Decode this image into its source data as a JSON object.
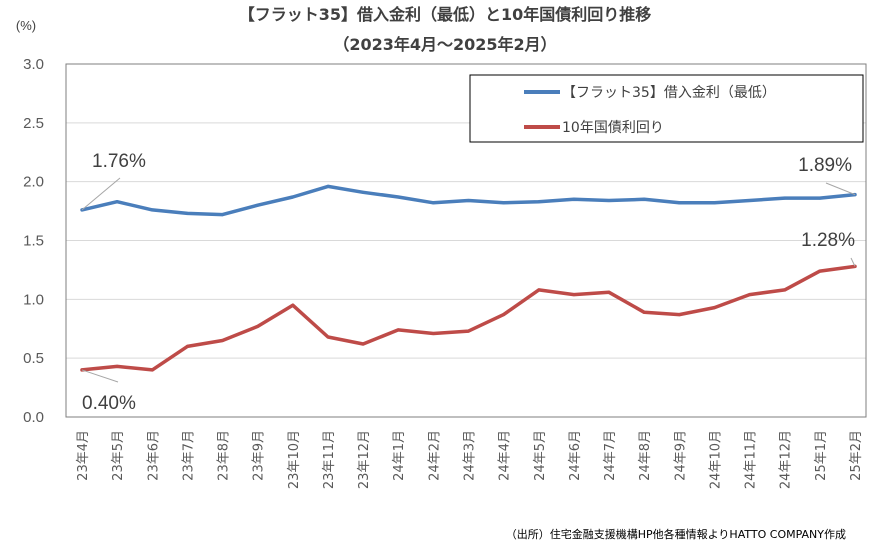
{
  "chart_data": {
    "type": "line",
    "title": "【フラット35】借入金利（最低）と10年国債利回り推移",
    "subtitle": "（2023年4月～2025年2月）",
    "ylabel": "(%)",
    "xlabel": "",
    "ylim": [
      0,
      3.0
    ],
    "yticks": [
      "0.0",
      "0.5",
      "1.0",
      "1.5",
      "2.0",
      "2.5",
      "3.0"
    ],
    "categories": [
      "23年4月",
      "23年5月",
      "23年6月",
      "23年7月",
      "23年8月",
      "23年9月",
      "23年10月",
      "23年11月",
      "23年12月",
      "24年1月",
      "24年2月",
      "24年3月",
      "24年4月",
      "24年5月",
      "24年6月",
      "24年7月",
      "24年8月",
      "24年9月",
      "24年10月",
      "24年11月",
      "24年12月",
      "25年1月",
      "25年2月"
    ],
    "series": [
      {
        "name": "【フラット35】借入金利（最低）",
        "color": "#4A7EBB",
        "values": [
          1.76,
          1.83,
          1.76,
          1.73,
          1.72,
          1.8,
          1.87,
          1.96,
          1.91,
          1.87,
          1.82,
          1.84,
          1.82,
          1.83,
          1.85,
          1.84,
          1.85,
          1.82,
          1.82,
          1.84,
          1.86,
          1.86,
          1.89
        ]
      },
      {
        "name": "10年国債利回り",
        "color": "#BE4B48",
        "values": [
          0.4,
          0.43,
          0.4,
          0.6,
          0.65,
          0.77,
          0.95,
          0.68,
          0.62,
          0.74,
          0.71,
          0.73,
          0.87,
          1.08,
          1.04,
          1.06,
          0.89,
          0.87,
          0.93,
          1.04,
          1.08,
          1.24,
          1.28
        ]
      }
    ],
    "annotations": [
      {
        "series": 0,
        "index": 0,
        "text": "1.76%"
      },
      {
        "series": 0,
        "index": 22,
        "text": "1.89%"
      },
      {
        "series": 1,
        "index": 22,
        "text": "1.28%"
      },
      {
        "series": 1,
        "index": 0,
        "text": "0.40%"
      }
    ],
    "grid": true,
    "legend": "top-right",
    "source": "（出所）住宅金融支援機構HP他各種情報よりHATTO COMPANY作成"
  }
}
